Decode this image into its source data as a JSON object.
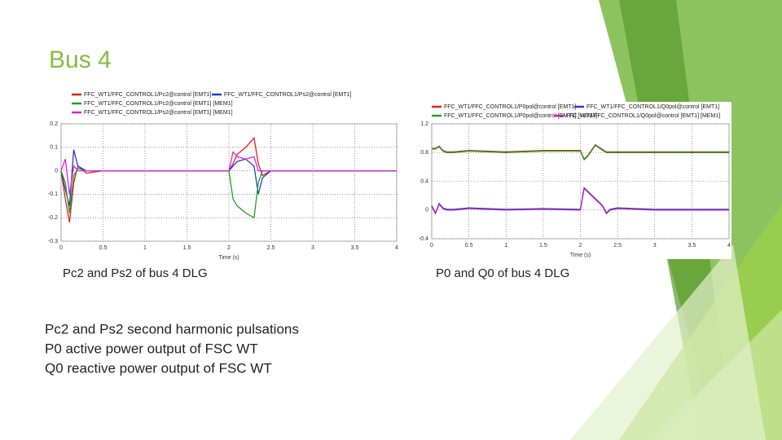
{
  "title": "Bus 4",
  "captions": [
    "Pc2 and Ps2 of bus 4 DLG",
    "P0 and Q0 of bus 4 DLG"
  ],
  "notes": [
    "Pc2 and Ps2 second harmonic pulsations",
    "P0 active power output of FSC WT",
    "Q0 reactive power output of FSC WT"
  ],
  "chart_data": [
    {
      "type": "line",
      "x_label": "Time (s)",
      "xlim": [
        0,
        4
      ],
      "xticks": [
        0,
        0.5,
        1,
        1.5,
        2,
        2.5,
        3,
        3.5,
        4
      ],
      "ylim": [
        -0.3,
        0.2
      ],
      "yticks": [
        -0.3,
        -0.2,
        -0.1,
        0,
        0.1,
        0.2
      ],
      "grid": true,
      "x": [
        0,
        0.05,
        0.1,
        0.15,
        0.2,
        0.3,
        0.5,
        1,
        1.5,
        2,
        2.05,
        2.1,
        2.2,
        2.3,
        2.35,
        2.4,
        2.5,
        3,
        3.5,
        4
      ],
      "series": [
        {
          "name": "FFC_WT1/FFC_CONTROL1/Pc2@control [EMT1]",
          "color": "#e02020",
          "values": [
            0,
            -0.12,
            -0.22,
            -0.05,
            0.02,
            -0.01,
            0,
            0,
            0,
            0,
            0.03,
            0.07,
            0.1,
            0.14,
            0.03,
            -0.02,
            0,
            0,
            0,
            0
          ]
        },
        {
          "name": "FFC_WT1/FFC_CONTROL1/Ps2@control [EMT1]",
          "color": "#2040c0",
          "values": [
            0,
            -0.08,
            -0.15,
            0.09,
            0.02,
            0,
            0,
            0,
            0,
            0,
            0.02,
            0.04,
            0.05,
            0.02,
            -0.1,
            -0.03,
            0,
            0,
            0,
            0
          ]
        },
        {
          "name": "FFC_WT1/FFC_CONTROL1/Pc2@control [EMT1] [MEM1]",
          "color": "#20a020",
          "values": [
            0,
            -0.05,
            -0.18,
            -0.02,
            0.01,
            0,
            0,
            0,
            0,
            0,
            -0.12,
            -0.15,
            -0.18,
            -0.2,
            -0.05,
            0,
            0,
            0,
            0,
            0
          ]
        },
        {
          "name": "FFC_WT1/FFC_CONTROL1/Ps2@control [EMT1] [MEM1]",
          "color": "#e020e0",
          "values": [
            0,
            0.05,
            -0.1,
            0.02,
            0,
            0,
            0,
            0,
            0,
            0,
            0.08,
            0.06,
            0.05,
            0.06,
            0,
            0,
            0,
            0,
            0,
            0
          ]
        }
      ]
    },
    {
      "type": "line",
      "x_label": "Time (s)",
      "xlim": [
        0,
        4
      ],
      "xticks": [
        0,
        0.5,
        1,
        1.5,
        2,
        2.5,
        3,
        3.5,
        4
      ],
      "ylim": [
        -0.4,
        1.2
      ],
      "yticks": [
        -0.4,
        0,
        0.4,
        0.8,
        1.2
      ],
      "grid": true,
      "x": [
        0,
        0.05,
        0.1,
        0.15,
        0.2,
        0.3,
        0.5,
        1,
        1.5,
        2,
        2.05,
        2.1,
        2.2,
        2.3,
        2.35,
        2.4,
        2.5,
        3,
        3.5,
        4
      ],
      "series": [
        {
          "name": "FFC_WT1/FFC_CONTROL1/P0pol@control [EMT1]",
          "color": "#e02020",
          "values": [
            0.86,
            0.86,
            0.89,
            0.83,
            0.81,
            0.81,
            0.83,
            0.81,
            0.83,
            0.83,
            0.71,
            0.76,
            0.91,
            0.84,
            0.81,
            0.81,
            0.81,
            0.81,
            0.81,
            0.81
          ]
        },
        {
          "name": "FFC_WT1/FFC_CONTROL1/Q0pol@control [EMT1]",
          "color": "#2040c0",
          "values": [
            0.06,
            -0.04,
            0.09,
            0.03,
            0.01,
            0.01,
            0.03,
            0.01,
            0.02,
            0.01,
            0.31,
            0.26,
            0.16,
            0.06,
            -0.04,
            0.01,
            0.03,
            0.01,
            0.01,
            0.01
          ]
        },
        {
          "name": "FFC_WT1/FFC_CONTROL1/P0pol@control [EMT1] [MEM1]",
          "color": "#20a020",
          "values": [
            0.85,
            0.85,
            0.88,
            0.82,
            0.8,
            0.8,
            0.82,
            0.8,
            0.82,
            0.82,
            0.7,
            0.75,
            0.9,
            0.83,
            0.8,
            0.8,
            0.8,
            0.8,
            0.8,
            0.8
          ]
        },
        {
          "name": "FFC_WT1/FFC_CONTROL1/Q0pol@control [EMT1] [MEM1]",
          "color": "#c020c0",
          "values": [
            0.05,
            -0.05,
            0.08,
            0.02,
            0,
            0,
            0.02,
            0,
            0.01,
            0,
            0.3,
            0.25,
            0.15,
            0.05,
            -0.05,
            0,
            0.02,
            0,
            0,
            0
          ]
        }
      ]
    }
  ]
}
